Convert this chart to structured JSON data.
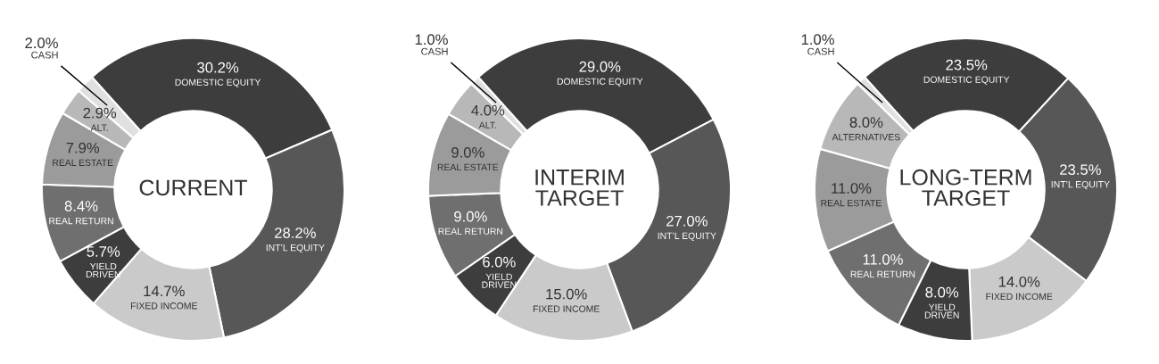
{
  "chart_data": [
    {
      "type": "donut",
      "title": "CURRENT",
      "categories": [
        "DOMESTIC EQUITY",
        "INT’L EQUITY",
        "FIXED INCOME",
        "YIELD\nDRIVEN",
        "REAL RETURN",
        "REAL ESTATE",
        "ALT.",
        "CASH"
      ],
      "values": [
        30.2,
        28.2,
        14.7,
        5.7,
        8.4,
        7.9,
        2.9,
        2.0
      ],
      "value_labels": [
        "30.2%",
        "28.2%",
        "14.7%",
        "5.7%",
        "8.4%",
        "7.9%",
        "2.9%",
        "2.0%"
      ],
      "colors": [
        "#3d3d3d",
        "#575757",
        "#cacaca",
        "#3d3d3d",
        "#6f6f6f",
        "#9b9b9b",
        "#b8b8b8",
        "#e0e0e0"
      ]
    },
    {
      "type": "donut",
      "title": "INTERIM\nTARGET",
      "categories": [
        "DOMESTIC EQUITY",
        "INT’L EQUITY",
        "FIXED INCOME",
        "YIELD\nDRIVEN",
        "REAL RETURN",
        "REAL ESTATE",
        "ALT.",
        "CASH"
      ],
      "values": [
        29.0,
        27.0,
        15.0,
        6.0,
        9.0,
        9.0,
        4.0,
        1.0
      ],
      "value_labels": [
        "29.0%",
        "27.0%",
        "15.0%",
        "6.0%",
        "9.0%",
        "9.0%",
        "4.0%",
        "1.0%"
      ],
      "colors": [
        "#3d3d3d",
        "#575757",
        "#cacaca",
        "#3d3d3d",
        "#6f6f6f",
        "#9b9b9b",
        "#b8b8b8",
        "#e0e0e0"
      ]
    },
    {
      "type": "donut",
      "title": "LONG-TERM\nTARGET",
      "categories": [
        "DOMESTIC EQUITY",
        "INT’L EQUITY",
        "FIXED INCOME",
        "YIELD\nDRIVEN",
        "REAL RETURN",
        "REAL ESTATE",
        "ALTERNATIVES",
        "CASH"
      ],
      "values": [
        23.5,
        23.5,
        14.0,
        8.0,
        11.0,
        11.0,
        8.0,
        1.0
      ],
      "value_labels": [
        "23.5%",
        "23.5%",
        "14.0%",
        "8.0%",
        "11.0%",
        "11.0%",
        "8.0%",
        "1.0%"
      ],
      "colors": [
        "#3d3d3d",
        "#575757",
        "#cacaca",
        "#3d3d3d",
        "#6f6f6f",
        "#9b9b9b",
        "#b8b8b8",
        "#e0e0e0"
      ]
    }
  ]
}
